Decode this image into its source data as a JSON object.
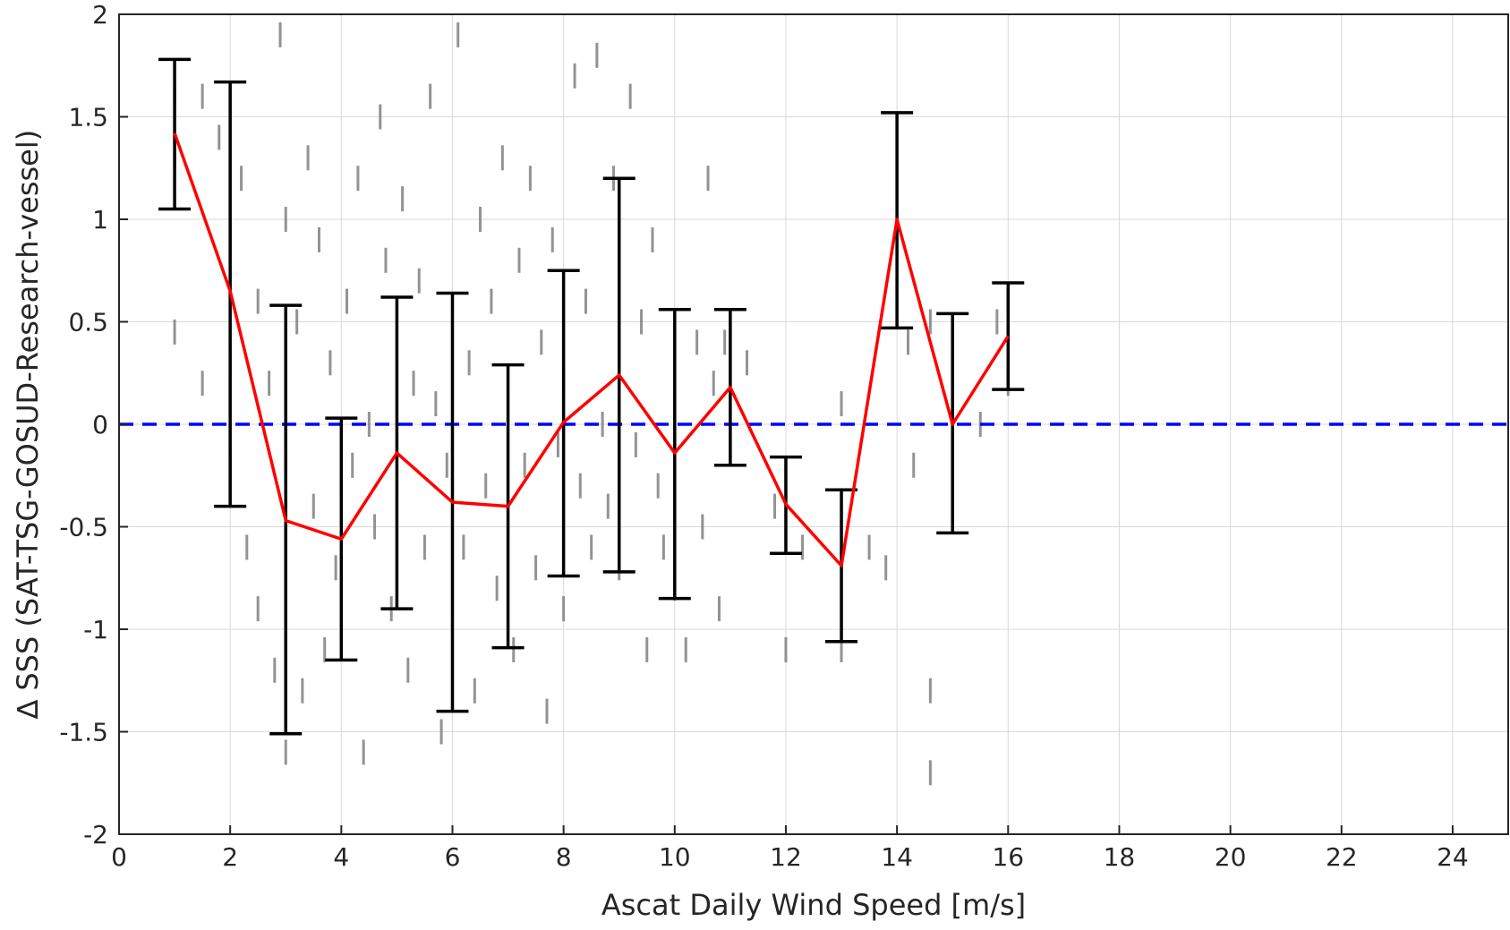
{
  "chart_data": {
    "type": "line",
    "title": "",
    "xlabel": "Ascat Daily Wind Speed [m/s]",
    "ylabel": "∆ SSS (SAT-TSG-GOSUD-Research-vessel)",
    "xlim": [
      0,
      25
    ],
    "ylim": [
      -2,
      2
    ],
    "xticks": [
      0,
      2,
      4,
      6,
      8,
      10,
      12,
      14,
      16,
      18,
      20,
      22,
      24
    ],
    "yticks": [
      -2,
      -1.5,
      -1,
      -0.5,
      0,
      0.5,
      1,
      1.5,
      2
    ],
    "xtick_labels": [
      "0",
      "2",
      "4",
      "6",
      "8",
      "10",
      "12",
      "14",
      "16",
      "18",
      "20",
      "22",
      "24"
    ],
    "ytick_labels": [
      "-2",
      "-1.5",
      "-1",
      "-0.5",
      "0",
      "0.5",
      "1",
      "1.5",
      "2"
    ],
    "grid": true,
    "colors": {
      "mean_line": "#ff0000",
      "error_bars": "#000000",
      "zero_line": "#0000ff",
      "scatter": "#808080",
      "grid": "#d9d9d9"
    },
    "mean_series": {
      "x": [
        1,
        2,
        3,
        4,
        5,
        6,
        7,
        8,
        9,
        10,
        11,
        12,
        13,
        14,
        15,
        16
      ],
      "y": [
        1.42,
        0.65,
        -0.47,
        -0.56,
        -0.14,
        -0.38,
        -0.4,
        0.01,
        0.24,
        -0.14,
        0.18,
        -0.39,
        -0.69,
        1.0,
        0.0,
        0.43
      ],
      "lower": [
        1.05,
        -0.4,
        -1.51,
        -1.15,
        -0.9,
        -1.4,
        -1.09,
        -0.74,
        -0.72,
        -0.85,
        -0.2,
        -0.63,
        -1.06,
        0.47,
        -0.53,
        0.17
      ],
      "upper": [
        1.78,
        1.67,
        0.58,
        0.03,
        0.62,
        0.64,
        0.29,
        0.75,
        1.2,
        0.56,
        0.56,
        -0.16,
        -0.32,
        1.52,
        0.54,
        0.69
      ]
    },
    "zero_line": {
      "y": 0,
      "style": "dashed"
    },
    "scatter_series": {
      "description": "individual collocations, small gray points",
      "points": [
        [
          1.0,
          1.3
        ],
        [
          1.0,
          0.45
        ],
        [
          1.0,
          1.6
        ],
        [
          1.5,
          1.6
        ],
        [
          1.5,
          0.2
        ],
        [
          1.8,
          1.4
        ],
        [
          2.0,
          0.9
        ],
        [
          2.0,
          0.3
        ],
        [
          2.0,
          -0.2
        ],
        [
          2.2,
          1.2
        ],
        [
          2.3,
          -0.6
        ],
        [
          2.5,
          0.6
        ],
        [
          2.5,
          -0.9
        ],
        [
          2.7,
          0.2
        ],
        [
          2.8,
          -1.2
        ],
        [
          2.9,
          1.9
        ],
        [
          3.0,
          1.0
        ],
        [
          3.0,
          0.2
        ],
        [
          3.0,
          -0.8
        ],
        [
          3.0,
          -1.6
        ],
        [
          3.2,
          0.5
        ],
        [
          3.3,
          -1.3
        ],
        [
          3.4,
          1.3
        ],
        [
          3.5,
          -0.4
        ],
        [
          3.6,
          0.9
        ],
        [
          3.7,
          -1.1
        ],
        [
          3.8,
          0.3
        ],
        [
          3.9,
          -0.7
        ],
        [
          4.0,
          -0.3
        ],
        [
          4.0,
          -1.0
        ],
        [
          4.1,
          0.6
        ],
        [
          4.2,
          -0.2
        ],
        [
          4.3,
          1.2
        ],
        [
          4.4,
          -1.6
        ],
        [
          4.5,
          0.0
        ],
        [
          4.6,
          -0.5
        ],
        [
          4.7,
          1.5
        ],
        [
          4.8,
          0.8
        ],
        [
          4.9,
          -0.9
        ],
        [
          5.0,
          0.4
        ],
        [
          5.0,
          -0.4
        ],
        [
          5.1,
          1.1
        ],
        [
          5.2,
          -1.2
        ],
        [
          5.3,
          0.2
        ],
        [
          5.4,
          0.7
        ],
        [
          5.5,
          -0.6
        ],
        [
          5.6,
          1.6
        ],
        [
          5.7,
          0.1
        ],
        [
          5.8,
          -1.5
        ],
        [
          5.9,
          -0.2
        ],
        [
          6.0,
          0.5
        ],
        [
          6.0,
          -1.0
        ],
        [
          6.1,
          1.9
        ],
        [
          6.2,
          -0.6
        ],
        [
          6.3,
          0.3
        ],
        [
          6.4,
          -1.3
        ],
        [
          6.5,
          1.0
        ],
        [
          6.6,
          -0.3
        ],
        [
          6.7,
          0.6
        ],
        [
          6.8,
          -0.8
        ],
        [
          6.9,
          1.3
        ],
        [
          7.0,
          -0.5
        ],
        [
          7.0,
          0.1
        ],
        [
          7.1,
          -1.1
        ],
        [
          7.2,
          0.8
        ],
        [
          7.3,
          -0.2
        ],
        [
          7.4,
          1.2
        ],
        [
          7.5,
          -0.7
        ],
        [
          7.6,
          0.4
        ],
        [
          7.7,
          -1.4
        ],
        [
          7.8,
          0.9
        ],
        [
          7.9,
          -0.1
        ],
        [
          8.0,
          0.2
        ],
        [
          8.0,
          -0.9
        ],
        [
          8.2,
          1.7
        ],
        [
          8.3,
          -0.3
        ],
        [
          8.4,
          0.6
        ],
        [
          8.5,
          -0.6
        ],
        [
          8.6,
          1.8
        ],
        [
          8.7,
          0.0
        ],
        [
          8.8,
          -0.4
        ],
        [
          8.9,
          1.2
        ],
        [
          9.0,
          0.3
        ],
        [
          9.0,
          -0.7
        ],
        [
          9.2,
          1.6
        ],
        [
          9.3,
          -0.1
        ],
        [
          9.4,
          0.5
        ],
        [
          9.5,
          -1.1
        ],
        [
          9.6,
          0.9
        ],
        [
          9.7,
          -0.3
        ],
        [
          9.8,
          -0.6
        ],
        [
          10.0,
          -0.8
        ],
        [
          10.0,
          0.1
        ],
        [
          10.2,
          -1.1
        ],
        [
          10.4,
          0.4
        ],
        [
          10.5,
          -0.5
        ],
        [
          10.6,
          1.2
        ],
        [
          10.7,
          0.2
        ],
        [
          10.8,
          -0.9
        ],
        [
          10.9,
          0.4
        ],
        [
          11.0,
          0.5
        ],
        [
          11.0,
          -0.1
        ],
        [
          11.3,
          0.3
        ],
        [
          11.8,
          -0.4
        ],
        [
          12.0,
          -0.5
        ],
        [
          12.0,
          -1.1
        ],
        [
          12.3,
          -0.6
        ],
        [
          13.0,
          -1.1
        ],
        [
          13.5,
          -0.6
        ],
        [
          13.8,
          -0.7
        ],
        [
          14.2,
          0.4
        ],
        [
          14.3,
          -0.2
        ],
        [
          14.6,
          0.5
        ],
        [
          14.6,
          -1.7
        ],
        [
          14.6,
          -1.3
        ],
        [
          15.0,
          0.3
        ],
        [
          15.0,
          -0.2
        ],
        [
          15.5,
          0.0
        ],
        [
          15.8,
          0.5
        ],
        [
          16.0,
          0.6
        ],
        [
          16.0,
          0.2
        ],
        [
          13.0,
          0.1
        ]
      ]
    }
  }
}
